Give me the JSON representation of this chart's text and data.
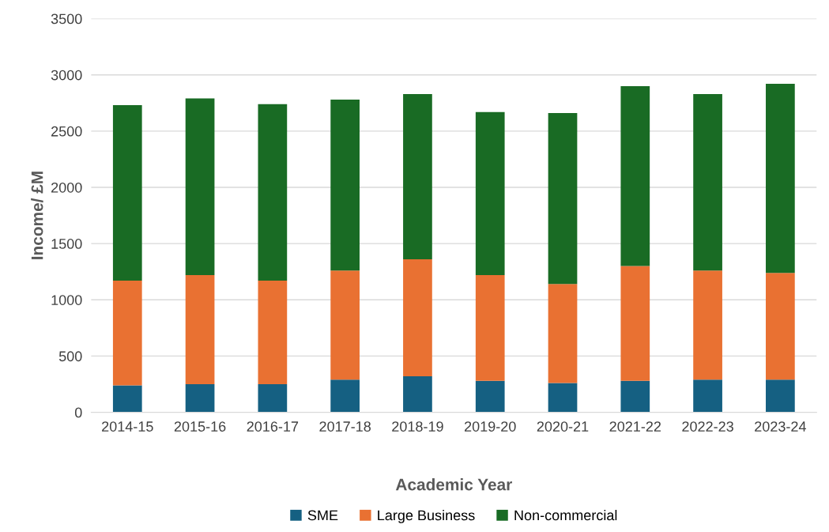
{
  "chart_data": {
    "type": "bar",
    "stacked": true,
    "xlabel": "Academic Year",
    "ylabel": "Income/ £M",
    "categories": [
      "2014-15",
      "2015-16",
      "2016-17",
      "2017-18",
      "2018-19",
      "2019-20",
      "2020-21",
      "2021-22",
      "2022-23",
      "2023-24"
    ],
    "series": [
      {
        "name": "SME",
        "color": "#156082",
        "values": [
          240,
          250,
          250,
          290,
          320,
          280,
          260,
          280,
          290,
          290
        ]
      },
      {
        "name": "Large Business",
        "color": "#e97132",
        "values": [
          930,
          970,
          920,
          970,
          1040,
          940,
          880,
          1020,
          970,
          950
        ]
      },
      {
        "name": "Non-commercial",
        "color": "#196b24",
        "values": [
          1560,
          1570,
          1570,
          1520,
          1470,
          1450,
          1520,
          1600,
          1570,
          1680
        ]
      }
    ],
    "ylim": [
      0,
      3500
    ],
    "yticks": [
      0,
      500,
      1000,
      1500,
      2000,
      2500,
      3000,
      3500
    ],
    "grid": "y",
    "legend": "bottom"
  }
}
